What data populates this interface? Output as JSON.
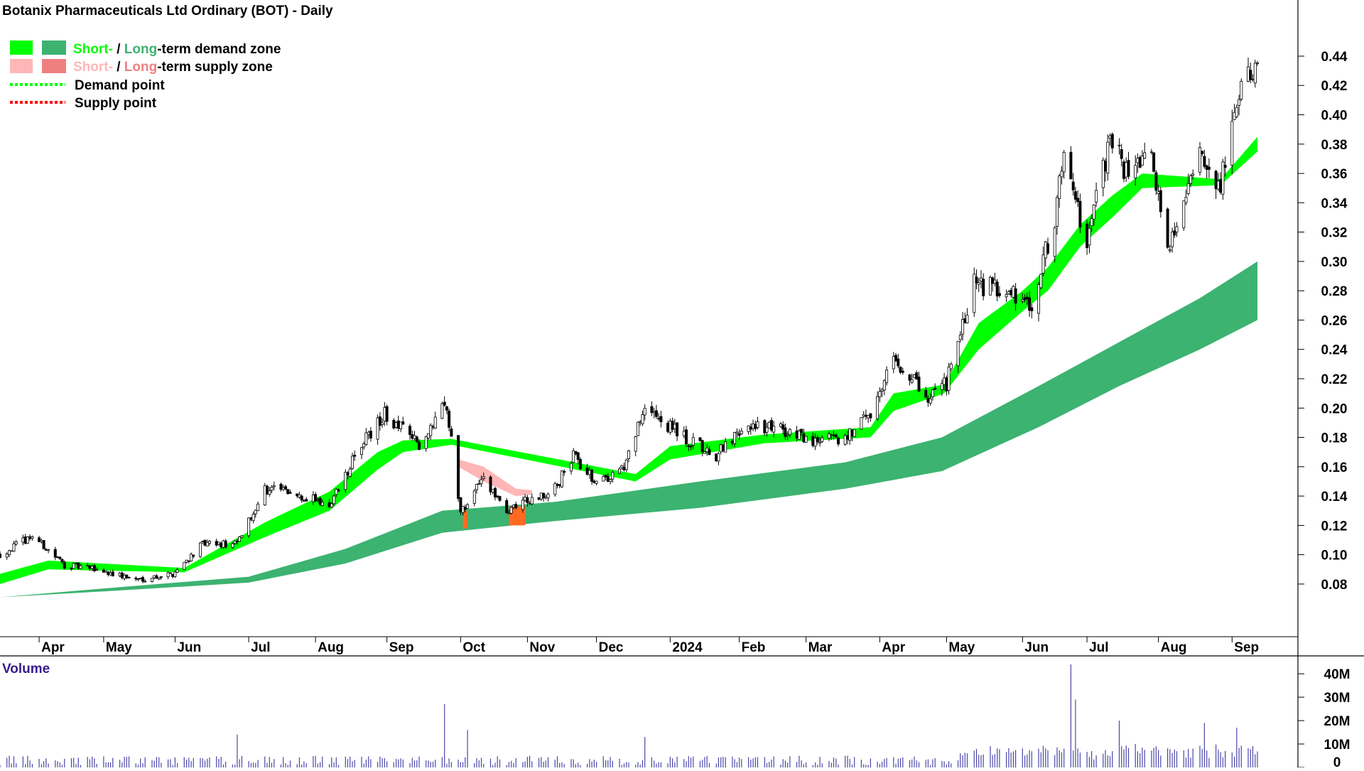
{
  "chart_data": {
    "type": "candlestick",
    "title": "Botanix Pharmaceuticals Ltd Ordinary (BOT) - Daily",
    "legend": {
      "placement": "top-left",
      "demand_zone": {
        "short_label": "Short-",
        "separator": " / ",
        "long_label": "Long",
        "suffix": "-term demand zone",
        "short_color": "#00ff00",
        "long_color": "#3cb371"
      },
      "supply_zone": {
        "short_label": "Short-",
        "separator": " / ",
        "long_label": "Long",
        "suffix": "-term supply zone",
        "short_color": "#ffb6b6",
        "long_color": "#f08080"
      },
      "demand_point": {
        "label": "Demand point",
        "color": "#00ff00"
      },
      "supply_point": {
        "label": "Supply point",
        "color": "#ff0000"
      }
    },
    "x_axis": {
      "labels": [
        "Apr",
        "May",
        "Jun",
        "Jul",
        "Aug",
        "Sep",
        "Oct",
        "Nov",
        "Dec",
        "2024",
        "Feb",
        "Mar",
        "Apr",
        "May",
        "Jun",
        "Jul",
        "Aug",
        "Sep"
      ],
      "label_dates": [
        "2023-04-03",
        "2023-05-01",
        "2023-06-01",
        "2023-07-03",
        "2023-08-01",
        "2023-09-01",
        "2023-10-03",
        "2023-11-01",
        "2023-12-01",
        "2024-01-02",
        "2024-02-01",
        "2024-03-01",
        "2024-04-02",
        "2024-05-01",
        "2024-06-03",
        "2024-07-01",
        "2024-08-01",
        "2024-09-02"
      ],
      "range": [
        "2023-03-17",
        "2024-09-13"
      ]
    },
    "price_axis": {
      "ticks": [
        "0.08",
        "0.10",
        "0.12",
        "0.14",
        "0.16",
        "0.18",
        "0.20",
        "0.22",
        "0.24",
        "0.26",
        "0.28",
        "0.30",
        "0.32",
        "0.34",
        "0.36",
        "0.38",
        "0.40",
        "0.42",
        "0.44"
      ],
      "range": [
        0.063,
        0.455
      ],
      "side": "right",
      "grid": false
    },
    "volume_panel": {
      "label": "Volume",
      "ticks": [
        "40M",
        "30M",
        "20M",
        "10M",
        "0"
      ],
      "range": [
        0,
        44
      ],
      "unit": "M"
    },
    "price_series_anchors": [
      {
        "date": "2023-03-17",
        "close": 0.1
      },
      {
        "date": "2023-03-31",
        "close": 0.113
      },
      {
        "date": "2023-04-14",
        "close": 0.093
      },
      {
        "date": "2023-04-28",
        "close": 0.09
      },
      {
        "date": "2023-05-15",
        "close": 0.083
      },
      {
        "date": "2023-05-31",
        "close": 0.087
      },
      {
        "date": "2023-06-13",
        "close": 0.107
      },
      {
        "date": "2023-06-28",
        "close": 0.107
      },
      {
        "date": "2023-07-10",
        "close": 0.145
      },
      {
        "date": "2023-07-24",
        "close": 0.142
      },
      {
        "date": "2023-08-07",
        "close": 0.133
      },
      {
        "date": "2023-08-21",
        "close": 0.176
      },
      {
        "date": "2023-08-31",
        "close": 0.196
      },
      {
        "date": "2023-09-15",
        "close": 0.175
      },
      {
        "date": "2023-09-26",
        "close": 0.205
      },
      {
        "date": "2023-09-29",
        "close": 0.178
      },
      {
        "date": "2023-10-03",
        "close": 0.128
      },
      {
        "date": "2023-10-12",
        "close": 0.155
      },
      {
        "date": "2023-10-23",
        "close": 0.127
      },
      {
        "date": "2023-10-31",
        "close": 0.137
      },
      {
        "date": "2023-11-13",
        "close": 0.145
      },
      {
        "date": "2023-11-21",
        "close": 0.168
      },
      {
        "date": "2023-12-01",
        "close": 0.148
      },
      {
        "date": "2023-12-13",
        "close": 0.16
      },
      {
        "date": "2023-12-22",
        "close": 0.2
      },
      {
        "date": "2024-01-10",
        "close": 0.178
      },
      {
        "date": "2024-01-22",
        "close": 0.168
      },
      {
        "date": "2024-02-05",
        "close": 0.188
      },
      {
        "date": "2024-02-19",
        "close": 0.186
      },
      {
        "date": "2024-03-04",
        "close": 0.177
      },
      {
        "date": "2024-03-18",
        "close": 0.18
      },
      {
        "date": "2024-03-29",
        "close": 0.198
      },
      {
        "date": "2024-04-08",
        "close": 0.235
      },
      {
        "date": "2024-04-22",
        "close": 0.208
      },
      {
        "date": "2024-05-01",
        "close": 0.217
      },
      {
        "date": "2024-05-13",
        "close": 0.285
      },
      {
        "date": "2024-05-27",
        "close": 0.28
      },
      {
        "date": "2024-06-07",
        "close": 0.272
      },
      {
        "date": "2024-06-17",
        "close": 0.33
      },
      {
        "date": "2024-06-21",
        "close": 0.38
      },
      {
        "date": "2024-07-01",
        "close": 0.31
      },
      {
        "date": "2024-07-11",
        "close": 0.385
      },
      {
        "date": "2024-07-19",
        "close": 0.355
      },
      {
        "date": "2024-07-29",
        "close": 0.372
      },
      {
        "date": "2024-08-05",
        "close": 0.312
      },
      {
        "date": "2024-08-12",
        "close": 0.335
      },
      {
        "date": "2024-08-19",
        "close": 0.372
      },
      {
        "date": "2024-08-28",
        "close": 0.35
      },
      {
        "date": "2024-09-04",
        "close": 0.415
      },
      {
        "date": "2024-09-13",
        "close": 0.43
      }
    ],
    "short_term_demand_zone": [
      {
        "date": "2023-03-17",
        "low": 0.08,
        "high": 0.087
      },
      {
        "date": "2023-04-07",
        "low": 0.09,
        "high": 0.096
      },
      {
        "date": "2023-06-05",
        "low": 0.088,
        "high": 0.091
      },
      {
        "date": "2023-07-10",
        "low": 0.112,
        "high": 0.122
      },
      {
        "date": "2023-08-07",
        "low": 0.13,
        "high": 0.143
      },
      {
        "date": "2023-08-28",
        "low": 0.158,
        "high": 0.17
      },
      {
        "date": "2023-09-08",
        "low": 0.17,
        "high": 0.178
      },
      {
        "date": "2023-09-29",
        "low": 0.175,
        "high": 0.179
      },
      {
        "date": "2023-12-18",
        "low": 0.15,
        "high": 0.155
      },
      {
        "date": "2024-01-02",
        "low": 0.165,
        "high": 0.174
      },
      {
        "date": "2024-02-12",
        "low": 0.176,
        "high": 0.182
      },
      {
        "date": "2024-03-29",
        "low": 0.18,
        "high": 0.187
      },
      {
        "date": "2024-04-08",
        "low": 0.198,
        "high": 0.21
      },
      {
        "date": "2024-04-30",
        "low": 0.21,
        "high": 0.216
      },
      {
        "date": "2024-05-15",
        "low": 0.24,
        "high": 0.258
      },
      {
        "date": "2024-06-03",
        "low": 0.266,
        "high": 0.28
      },
      {
        "date": "2024-06-14",
        "low": 0.28,
        "high": 0.296
      },
      {
        "date": "2024-06-28",
        "low": 0.31,
        "high": 0.325
      },
      {
        "date": "2024-07-12",
        "low": 0.33,
        "high": 0.345
      },
      {
        "date": "2024-07-25",
        "low": 0.35,
        "high": 0.36
      },
      {
        "date": "2024-08-28",
        "low": 0.352,
        "high": 0.356
      },
      {
        "date": "2024-09-13",
        "low": 0.375,
        "high": 0.385
      }
    ],
    "long_term_demand_zone": [
      {
        "date": "2023-03-17",
        "low": 0.071,
        "high": 0.071
      },
      {
        "date": "2023-05-01",
        "low": 0.075,
        "high": 0.077
      },
      {
        "date": "2023-07-03",
        "low": 0.081,
        "high": 0.085
      },
      {
        "date": "2023-08-14",
        "low": 0.094,
        "high": 0.104
      },
      {
        "date": "2023-09-25",
        "low": 0.115,
        "high": 0.13
      },
      {
        "date": "2023-11-13",
        "low": 0.123,
        "high": 0.136
      },
      {
        "date": "2024-01-15",
        "low": 0.132,
        "high": 0.15
      },
      {
        "date": "2024-03-18",
        "low": 0.145,
        "high": 0.163
      },
      {
        "date": "2024-04-29",
        "low": 0.157,
        "high": 0.18
      },
      {
        "date": "2024-06-10",
        "low": 0.187,
        "high": 0.215
      },
      {
        "date": "2024-07-15",
        "low": 0.215,
        "high": 0.245
      },
      {
        "date": "2024-08-19",
        "low": 0.24,
        "high": 0.275
      },
      {
        "date": "2024-09-13",
        "low": 0.26,
        "high": 0.3
      }
    ],
    "short_term_supply_zone": [
      {
        "date": "2023-10-02",
        "low": 0.16,
        "high": 0.165
      },
      {
        "date": "2023-10-13",
        "low": 0.15,
        "high": 0.16
      },
      {
        "date": "2023-10-27",
        "low": 0.14,
        "high": 0.145
      },
      {
        "date": "2023-11-03",
        "low": 0.141,
        "high": 0.144
      }
    ],
    "long_term_supply_zone": [
      {
        "date": "2023-10-04",
        "low": 0.118,
        "high": 0.13
      },
      {
        "date": "2023-10-06",
        "low": 0.118,
        "high": 0.13
      },
      {
        "date": "2023-10-24",
        "low": 0.12,
        "high": 0.133
      },
      {
        "date": "2023-10-31",
        "low": 0.12,
        "high": 0.133
      }
    ],
    "volume_spikes": [
      {
        "date": "2023-06-28",
        "volume": 14
      },
      {
        "date": "2023-09-26",
        "volume": 27
      },
      {
        "date": "2023-10-06",
        "volume": 16
      },
      {
        "date": "2023-12-22",
        "volume": 13
      },
      {
        "date": "2024-06-24",
        "volume": 44
      },
      {
        "date": "2024-06-26",
        "volume": 29
      },
      {
        "date": "2024-07-15",
        "volume": 20
      },
      {
        "date": "2024-08-21",
        "volume": 19
      },
      {
        "date": "2024-09-04",
        "volume": 17
      }
    ]
  }
}
